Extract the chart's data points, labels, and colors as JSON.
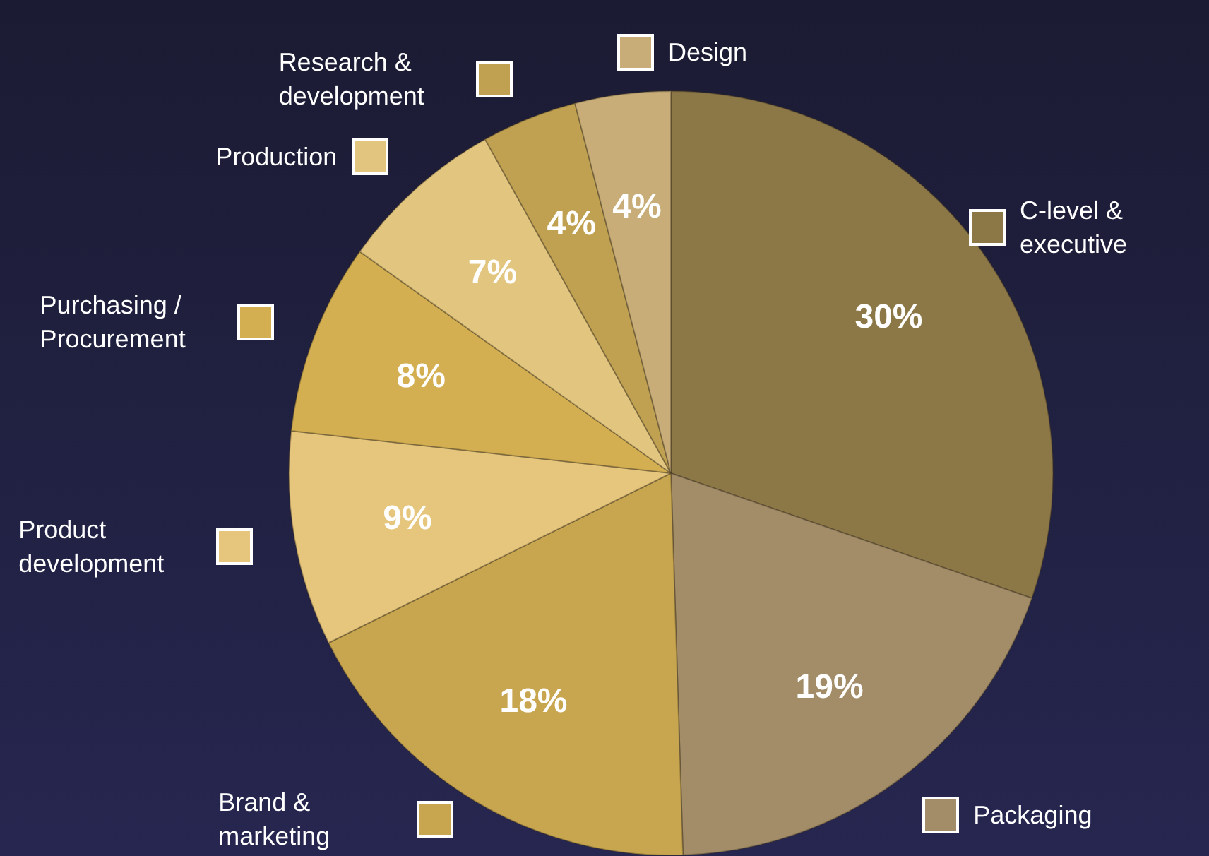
{
  "chart_data": {
    "type": "pie",
    "categories": [
      "C-level & executive",
      "Packaging",
      "Brand & marketing",
      "Product development",
      "Purchasing / Procurement",
      "Production",
      "Research & development",
      "Design"
    ],
    "values": [
      30,
      19,
      18,
      9,
      8,
      7,
      4,
      4
    ],
    "value_labels": [
      "30%",
      "19%",
      "18%",
      "9%",
      "8%",
      "7%",
      "4%",
      "4%"
    ],
    "legend": "left",
    "colors": [
      "#8c7747",
      "#a38d68",
      "#c8a64f",
      "#e6c57c",
      "#d3af52",
      "#e2c67f",
      "#c0a151",
      "#c8ad78"
    ]
  }
}
